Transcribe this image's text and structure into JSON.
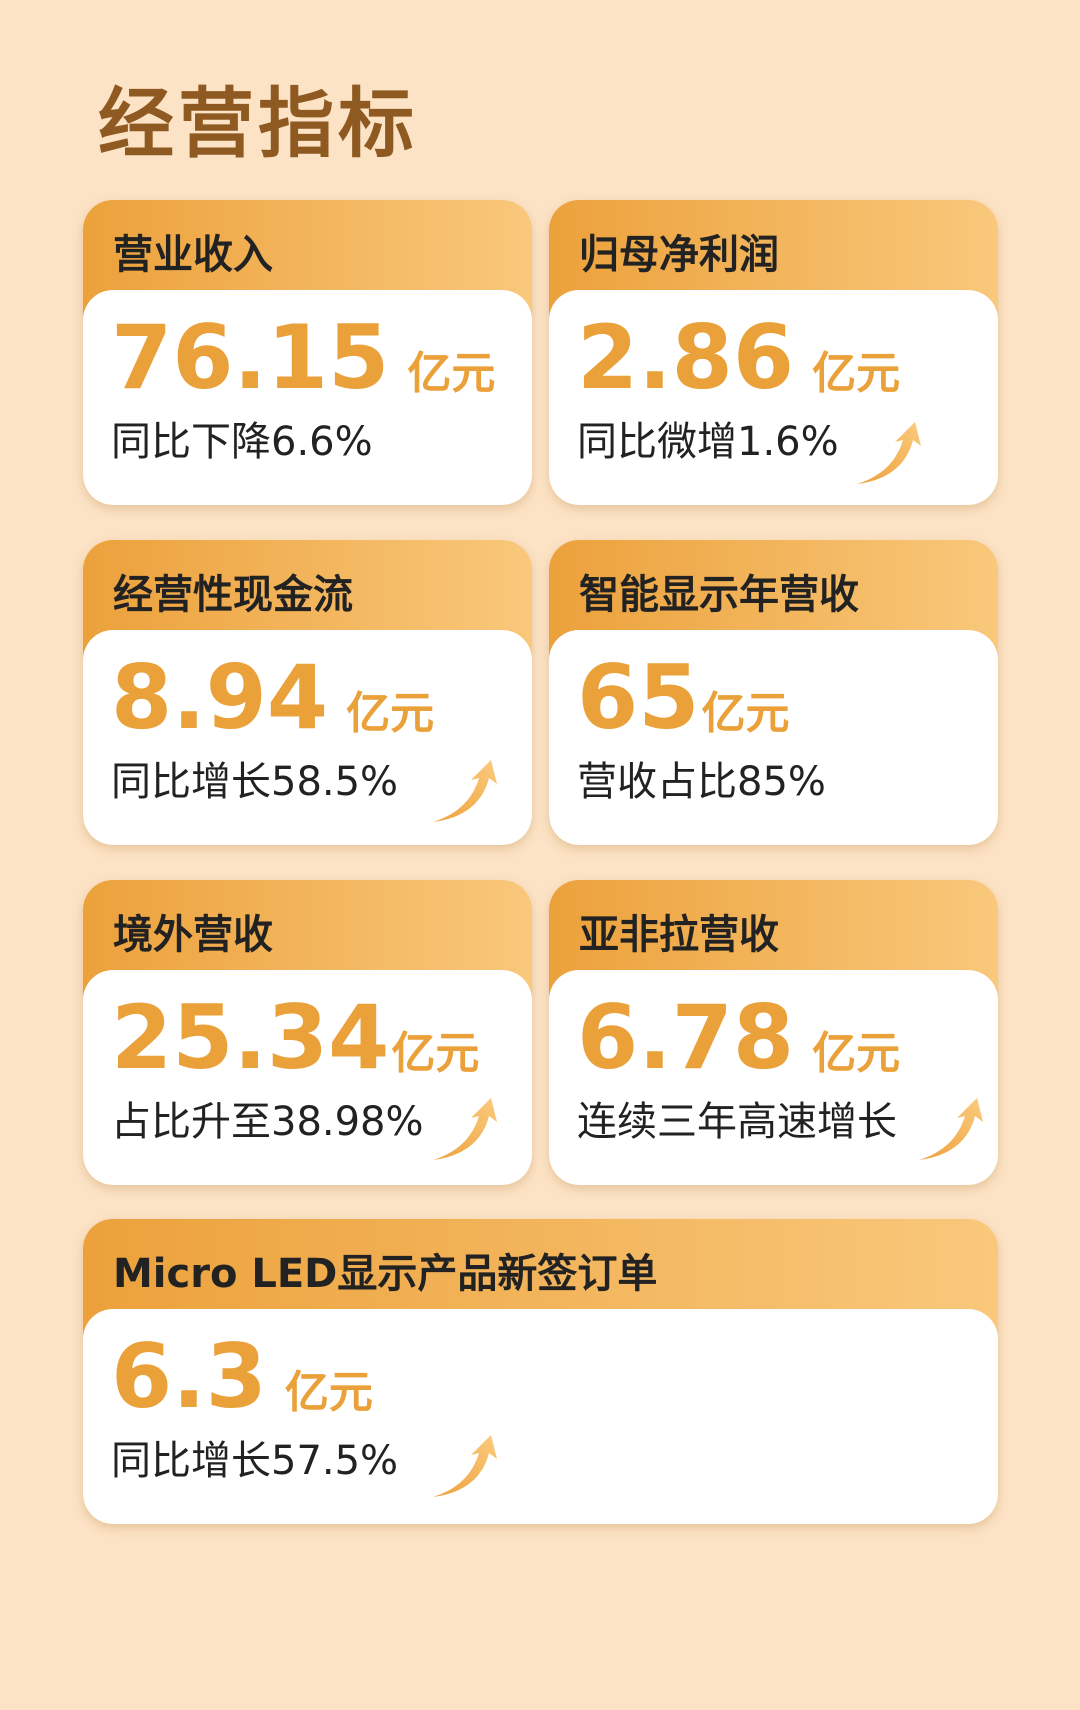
{
  "page_title": "经营指标",
  "colors": {
    "accent": "#eba13a",
    "header_start": "#eca13b",
    "header_end": "#f9c87b",
    "background": "#fce3c5",
    "title": "#8e5a22"
  },
  "cards": [
    {
      "label": "营业收入",
      "value": "76.15",
      "unit": "亿元",
      "note": "同比下降6.6%",
      "icon": null
    },
    {
      "label": "归母净利润",
      "value": "2.86",
      "unit": "亿元",
      "note": "同比微增1.6%",
      "icon": "up-arrow-icon"
    },
    {
      "label": "经营性现金流",
      "value": "8.94",
      "unit": "亿元",
      "note": "同比增长58.5%",
      "icon": "up-arrow-icon"
    },
    {
      "label": "智能显示年营收",
      "value": "65",
      "unit": "亿元",
      "note": "营收占比85%",
      "icon": null
    },
    {
      "label": "境外营收",
      "value": "25.34",
      "unit": "亿元",
      "note": "占比升至38.98%",
      "icon": "up-arrow-icon"
    },
    {
      "label": "亚非拉营收",
      "value": "6.78",
      "unit": "亿元",
      "note": "连续三年高速增长",
      "icon": "up-arrow-icon"
    },
    {
      "label": "Micro LED显示产品新签订单",
      "value": "6.3",
      "unit": "亿元",
      "note": "同比增长57.5%",
      "icon": "up-arrow-icon"
    }
  ]
}
